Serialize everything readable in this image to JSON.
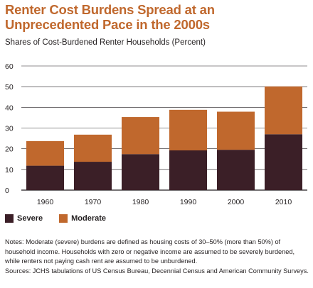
{
  "title": "Renter Cost Burdens Spread at an Unprecedented Pace in the 2000s",
  "subtitle": "Shares of Cost-Burdened Renter Households (Percent)",
  "colors": {
    "severe": "#3b1f27",
    "moderate": "#c0682d",
    "title": "#c0682d",
    "grid": "#231f20"
  },
  "chart_data": {
    "type": "bar",
    "stacked": true,
    "title": "Renter Cost Burdens Spread at an Unprecedented Pace in the 2000s",
    "subtitle": "Shares of Cost-Burdened Renter Households (Percent)",
    "categories": [
      "1960",
      "1970",
      "1980",
      "1990",
      "2000",
      "2010"
    ],
    "series": [
      {
        "name": "Severe",
        "values": [
          11.8,
          13.7,
          17.4,
          19.2,
          19.5,
          27.0
        ]
      },
      {
        "name": "Moderate",
        "values": [
          11.9,
          13.1,
          17.9,
          19.6,
          18.4,
          23.1
        ]
      }
    ],
    "ylim": [
      0,
      60
    ],
    "yticks": [
      0,
      10,
      20,
      30,
      40,
      50,
      60
    ],
    "grid": true,
    "legend": "bottom-left",
    "xlabel": "",
    "ylabel": ""
  },
  "legend": {
    "severe_label": "Severe",
    "moderate_label": "Moderate"
  },
  "notes": {
    "line1": "Notes: Moderate (severe) burdens are defined as housing costs of 30–50% (more than 50%) of household income. Households with zero or negative income are assumed to be severely burdened, while renters not paying cash rent are assumed to be unburdened.",
    "line2": "Sources: JCHS tabulations of US Census Bureau, Decennial Census and American Community Surveys."
  }
}
